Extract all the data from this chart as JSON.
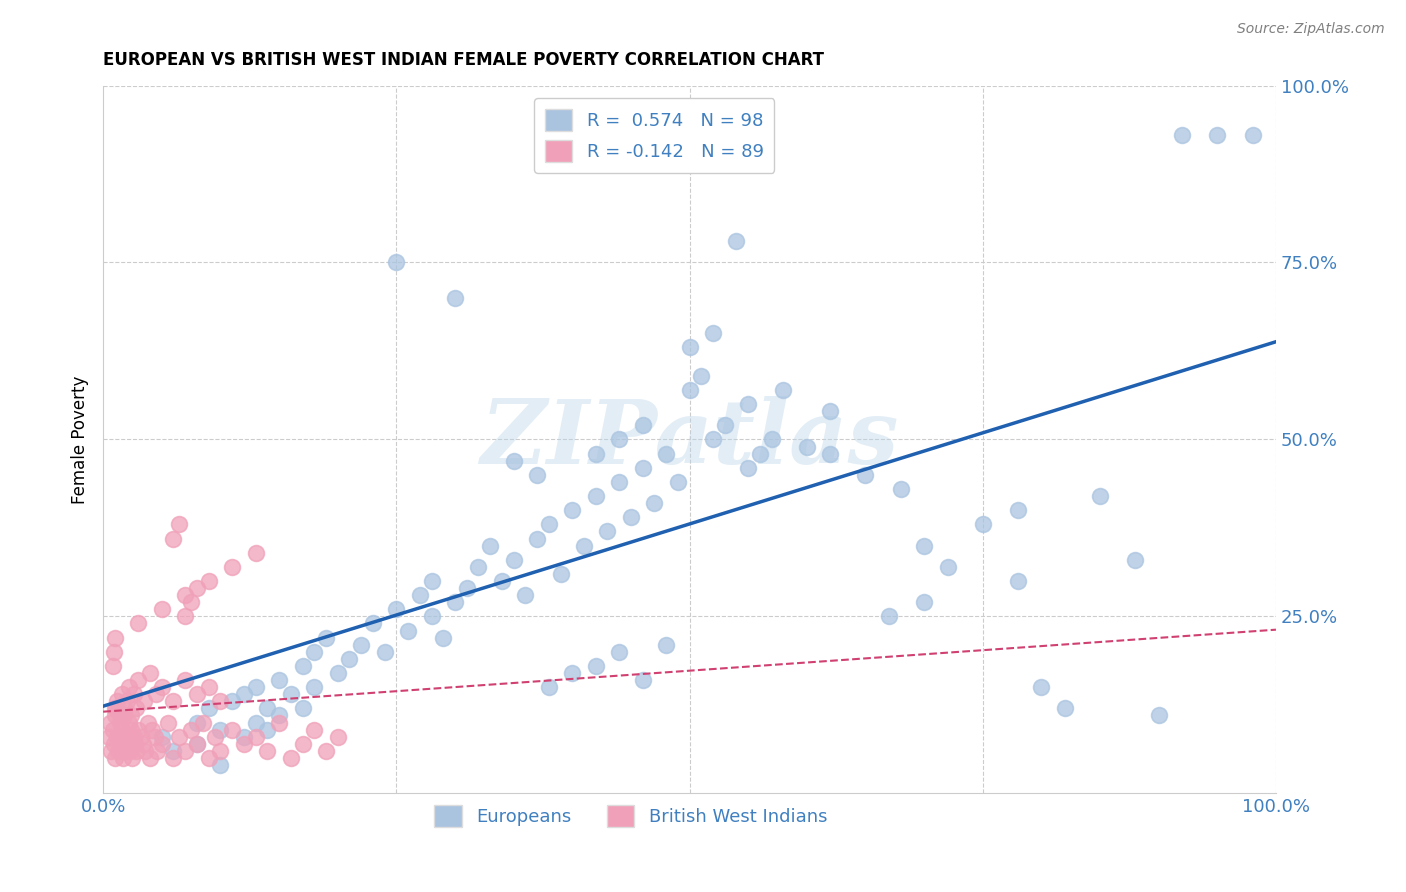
{
  "title": "EUROPEAN VS BRITISH WEST INDIAN FEMALE POVERTY CORRELATION CHART",
  "source": "Source: ZipAtlas.com",
  "ylabel": "Female Poverty",
  "blue_R": 0.574,
  "blue_N": 98,
  "pink_R": -0.142,
  "pink_N": 89,
  "blue_face_color": "#aac4e0",
  "blue_line_color": "#2060b0",
  "pink_face_color": "#f0a0b8",
  "pink_line_color": "#d04070",
  "watermark": "ZIPatlas",
  "tick_color": "#4080c0",
  "blue_scatter_x": [
    0.05,
    0.06,
    0.08,
    0.08,
    0.09,
    0.1,
    0.11,
    0.12,
    0.12,
    0.13,
    0.13,
    0.14,
    0.14,
    0.15,
    0.15,
    0.16,
    0.17,
    0.17,
    0.18,
    0.18,
    0.19,
    0.2,
    0.21,
    0.22,
    0.23,
    0.24,
    0.25,
    0.26,
    0.27,
    0.28,
    0.28,
    0.29,
    0.3,
    0.31,
    0.32,
    0.33,
    0.34,
    0.35,
    0.36,
    0.37,
    0.38,
    0.39,
    0.4,
    0.41,
    0.42,
    0.43,
    0.44,
    0.45,
    0.46,
    0.47,
    0.48,
    0.49,
    0.5,
    0.51,
    0.52,
    0.53,
    0.55,
    0.56,
    0.57,
    0.6,
    0.62,
    0.65,
    0.68,
    0.7,
    0.72,
    0.75,
    0.78,
    0.8,
    0.85,
    0.88,
    0.9,
    0.38,
    0.4,
    0.42,
    0.44,
    0.46,
    0.48,
    0.25,
    0.3,
    0.5,
    0.52,
    0.54,
    0.35,
    0.37,
    0.42,
    0.44,
    0.46,
    0.55,
    0.58,
    0.62,
    0.67,
    0.7,
    0.78,
    0.82,
    0.92,
    0.95,
    0.98,
    0.1
  ],
  "blue_scatter_y": [
    0.08,
    0.06,
    0.1,
    0.07,
    0.12,
    0.09,
    0.13,
    0.08,
    0.14,
    0.1,
    0.15,
    0.12,
    0.09,
    0.16,
    0.11,
    0.14,
    0.18,
    0.12,
    0.2,
    0.15,
    0.22,
    0.17,
    0.19,
    0.21,
    0.24,
    0.2,
    0.26,
    0.23,
    0.28,
    0.25,
    0.3,
    0.22,
    0.27,
    0.29,
    0.32,
    0.35,
    0.3,
    0.33,
    0.28,
    0.36,
    0.38,
    0.31,
    0.4,
    0.35,
    0.42,
    0.37,
    0.44,
    0.39,
    0.46,
    0.41,
    0.48,
    0.44,
    0.57,
    0.59,
    0.5,
    0.52,
    0.46,
    0.48,
    0.5,
    0.49,
    0.54,
    0.45,
    0.43,
    0.35,
    0.32,
    0.38,
    0.3,
    0.15,
    0.42,
    0.33,
    0.11,
    0.15,
    0.17,
    0.18,
    0.2,
    0.16,
    0.21,
    0.75,
    0.7,
    0.63,
    0.65,
    0.78,
    0.47,
    0.45,
    0.48,
    0.5,
    0.52,
    0.55,
    0.57,
    0.48,
    0.25,
    0.27,
    0.4,
    0.12,
    0.93,
    0.93,
    0.93,
    0.04
  ],
  "pink_scatter_x": [
    0.005,
    0.006,
    0.007,
    0.008,
    0.009,
    0.01,
    0.01,
    0.011,
    0.012,
    0.013,
    0.014,
    0.015,
    0.016,
    0.017,
    0.018,
    0.019,
    0.02,
    0.021,
    0.022,
    0.023,
    0.024,
    0.025,
    0.026,
    0.027,
    0.028,
    0.03,
    0.032,
    0.034,
    0.036,
    0.038,
    0.04,
    0.042,
    0.044,
    0.046,
    0.05,
    0.055,
    0.06,
    0.065,
    0.07,
    0.075,
    0.08,
    0.085,
    0.09,
    0.095,
    0.1,
    0.11,
    0.12,
    0.13,
    0.14,
    0.15,
    0.16,
    0.17,
    0.18,
    0.19,
    0.2,
    0.01,
    0.012,
    0.014,
    0.016,
    0.018,
    0.02,
    0.022,
    0.024,
    0.026,
    0.028,
    0.03,
    0.035,
    0.04,
    0.045,
    0.05,
    0.06,
    0.07,
    0.08,
    0.09,
    0.1,
    0.008,
    0.009,
    0.01,
    0.03,
    0.05,
    0.07,
    0.09,
    0.11,
    0.13,
    0.06,
    0.065,
    0.07,
    0.075,
    0.08
  ],
  "pink_scatter_y": [
    0.08,
    0.1,
    0.06,
    0.09,
    0.07,
    0.11,
    0.05,
    0.12,
    0.08,
    0.06,
    0.1,
    0.07,
    0.09,
    0.05,
    0.11,
    0.06,
    0.08,
    0.07,
    0.1,
    0.06,
    0.09,
    0.05,
    0.08,
    0.07,
    0.06,
    0.09,
    0.08,
    0.07,
    0.06,
    0.1,
    0.05,
    0.09,
    0.08,
    0.06,
    0.07,
    0.1,
    0.05,
    0.08,
    0.06,
    0.09,
    0.07,
    0.1,
    0.05,
    0.08,
    0.06,
    0.09,
    0.07,
    0.08,
    0.06,
    0.1,
    0.05,
    0.07,
    0.09,
    0.06,
    0.08,
    0.12,
    0.13,
    0.11,
    0.14,
    0.12,
    0.13,
    0.15,
    0.11,
    0.14,
    0.12,
    0.16,
    0.13,
    0.17,
    0.14,
    0.15,
    0.13,
    0.16,
    0.14,
    0.15,
    0.13,
    0.18,
    0.2,
    0.22,
    0.24,
    0.26,
    0.28,
    0.3,
    0.32,
    0.34,
    0.36,
    0.38,
    0.25,
    0.27,
    0.29
  ]
}
